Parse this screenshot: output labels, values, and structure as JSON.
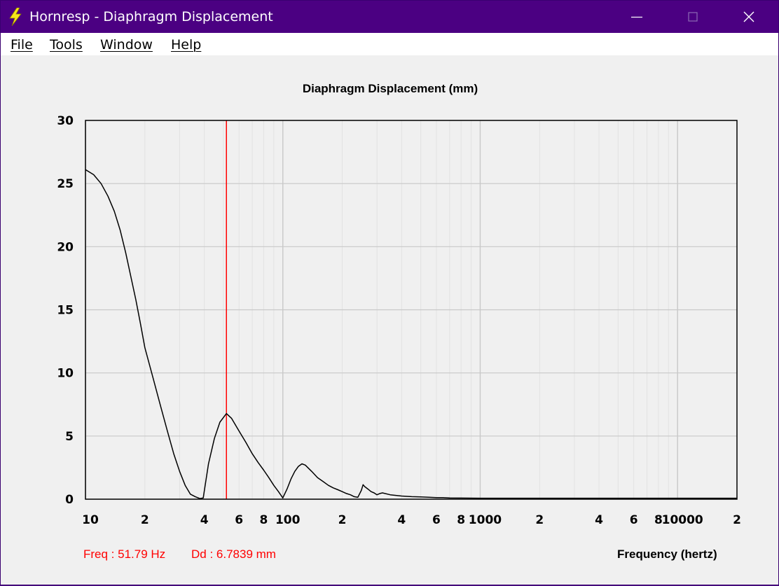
{
  "window": {
    "title": "Hornresp - Diaphragm Displacement",
    "app_icon": "lightning-bolt-icon",
    "titlebar_color": "#4b0082"
  },
  "menu": {
    "items": [
      {
        "label": "File",
        "accesskey": "F"
      },
      {
        "label": "Tools",
        "accesskey": "T"
      },
      {
        "label": "Window",
        "accesskey": "W"
      },
      {
        "label": "Help",
        "accesskey": "H"
      }
    ]
  },
  "status": {
    "freq": "Freq : 51.79 Hz",
    "dd": "Dd : 6.7839 mm",
    "color": "#ff0000"
  },
  "chart_data": {
    "type": "line",
    "title": "Diaphragm Displacement (mm)",
    "xlabel": "Frequency (hertz)",
    "ylabel": "",
    "xscale": "log",
    "xlim": [
      10,
      20000
    ],
    "ylim": [
      0,
      30
    ],
    "grid": true,
    "y_ticks": [
      0,
      5,
      10,
      15,
      20,
      25,
      30
    ],
    "x_tick_labels": [
      {
        "x": 10,
        "label": "10"
      },
      {
        "x": 20,
        "label": "2"
      },
      {
        "x": 40,
        "label": "4"
      },
      {
        "x": 60,
        "label": "6"
      },
      {
        "x": 80,
        "label": "8"
      },
      {
        "x": 100,
        "label": "100"
      },
      {
        "x": 200,
        "label": "2"
      },
      {
        "x": 400,
        "label": "4"
      },
      {
        "x": 600,
        "label": "6"
      },
      {
        "x": 800,
        "label": "8"
      },
      {
        "x": 1000,
        "label": "1000"
      },
      {
        "x": 2000,
        "label": "2"
      },
      {
        "x": 4000,
        "label": "4"
      },
      {
        "x": 6000,
        "label": "6"
      },
      {
        "x": 8000,
        "label": "8"
      },
      {
        "x": 10000,
        "label": "10000"
      },
      {
        "x": 20000,
        "label": "2"
      }
    ],
    "cursor": {
      "x": 51.79,
      "y": 6.7839,
      "color": "#ff0000"
    },
    "series": [
      {
        "color": "#000000",
        "x": [
          10,
          11,
          12,
          13,
          14,
          15,
          16,
          17,
          18,
          19,
          20,
          22,
          24,
          26,
          28,
          30,
          32,
          34,
          36,
          38,
          39.5,
          42,
          45,
          48,
          51.8,
          55,
          60,
          65,
          70,
          75,
          80,
          85,
          90,
          95,
          100,
          105,
          110,
          115,
          120,
          125,
          130,
          140,
          150,
          160,
          170,
          180,
          190,
          200,
          210,
          220,
          230,
          240,
          250,
          255,
          260,
          270,
          280,
          290,
          300,
          310,
          320,
          350,
          400,
          450,
          500,
          550,
          600,
          650,
          700,
          800,
          1000,
          1500,
          2000,
          3000,
          5000,
          10000,
          20000
        ],
        "y": [
          26.1,
          25.7,
          25.0,
          24.0,
          22.8,
          21.3,
          19.5,
          17.6,
          15.8,
          13.9,
          12.0,
          9.6,
          7.4,
          5.4,
          3.6,
          2.2,
          1.1,
          0.4,
          0.2,
          0.05,
          0.1,
          2.8,
          4.8,
          6.1,
          6.78,
          6.4,
          5.4,
          4.5,
          3.6,
          2.9,
          2.3,
          1.7,
          1.1,
          0.6,
          0.1,
          0.8,
          1.6,
          2.2,
          2.6,
          2.8,
          2.7,
          2.2,
          1.7,
          1.4,
          1.1,
          0.9,
          0.75,
          0.6,
          0.45,
          0.35,
          0.2,
          0.15,
          0.7,
          1.15,
          1.0,
          0.8,
          0.6,
          0.5,
          0.35,
          0.45,
          0.5,
          0.35,
          0.25,
          0.2,
          0.18,
          0.15,
          0.12,
          0.12,
          0.1,
          0.09,
          0.08,
          0.08,
          0.08,
          0.08,
          0.08,
          0.08,
          0.08
        ]
      }
    ]
  }
}
